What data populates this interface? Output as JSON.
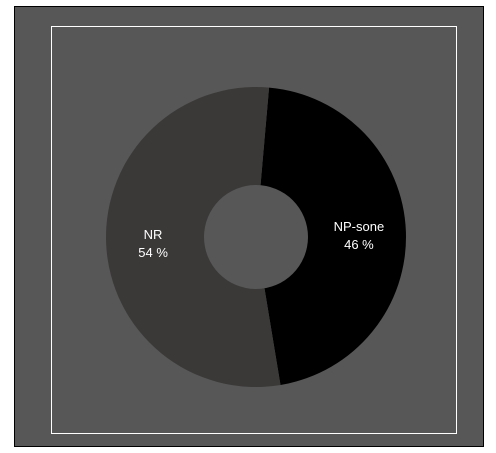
{
  "chart_data": {
    "type": "pie",
    "donut": true,
    "categories": [
      "NP-sone",
      "NR"
    ],
    "values": [
      46,
      54
    ],
    "value_labels": [
      "46 %",
      "54 %"
    ],
    "colors": [
      "#000000",
      "#3a3938"
    ],
    "background_color": "#575757",
    "hole_color": "#575757",
    "legend": "none"
  }
}
